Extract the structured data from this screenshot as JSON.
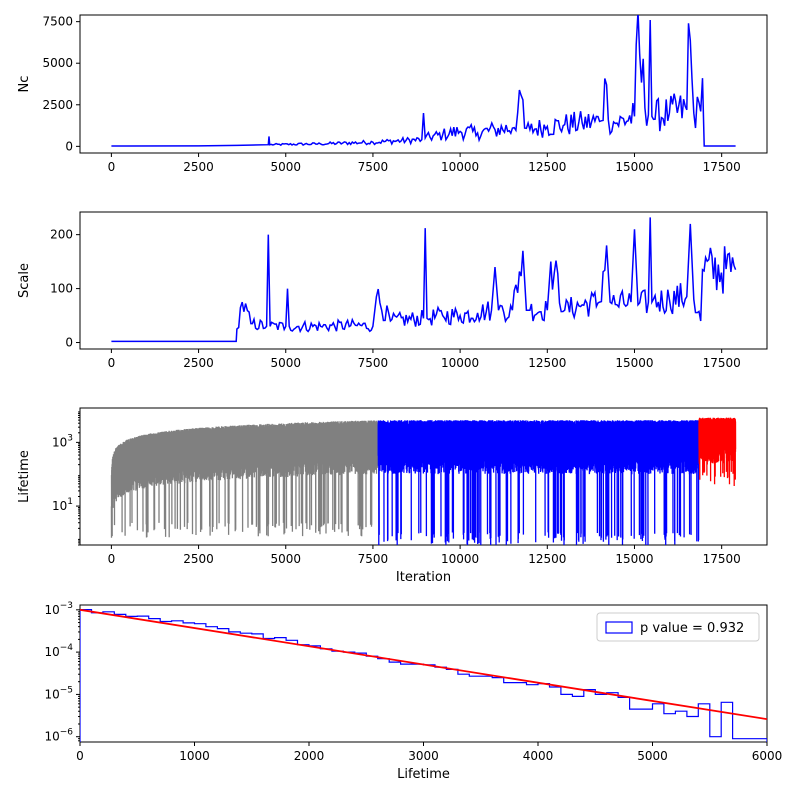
{
  "chart_data": [
    {
      "type": "line",
      "ylabel": "Nc",
      "xlabel": "",
      "xlim": [
        -900,
        18800
      ],
      "ylim": [
        -400,
        7900
      ],
      "xticks": [
        "0",
        "2500",
        "5000",
        "7500",
        "10000",
        "12500",
        "15000",
        "17500"
      ],
      "xtick_values": [
        0,
        2500,
        5000,
        7500,
        10000,
        12500,
        15000,
        17500
      ],
      "yticks": [
        "0",
        "2500",
        "5000",
        "7500"
      ],
      "ytick_values": [
        0,
        2500,
        5000,
        7500
      ],
      "series": [
        {
          "color": "#0000ff",
          "x": [
            0,
            2500,
            3600,
            4500,
            4520,
            4540,
            6000,
            7500,
            8900,
            8950,
            9000,
            9500,
            10000,
            10500,
            11000,
            11500,
            11800,
            11850,
            12000,
            12500,
            13000,
            13500,
            14000,
            14200,
            14250,
            14500,
            15000,
            15050,
            15400,
            15450,
            15500,
            16000,
            16500,
            16550,
            16700,
            16900,
            16950,
            17000,
            17900
          ],
          "y": [
            20,
            30,
            60,
            100,
            600,
            100,
            150,
            250,
            400,
            2000,
            500,
            700,
            900,
            800,
            1000,
            1100,
            2800,
            1100,
            1000,
            1200,
            1300,
            1400,
            1500,
            3700,
            1600,
            1400,
            1800,
            6100,
            1900,
            7600,
            1800,
            2000,
            2200,
            7400,
            2000,
            2100,
            4100,
            20,
            20
          ]
        }
      ]
    },
    {
      "type": "line",
      "ylabel": "Scale",
      "xlabel": "",
      "xlim": [
        -900,
        18800
      ],
      "ylim": [
        -12,
        242
      ],
      "xticks": [
        "0",
        "2500",
        "5000",
        "7500",
        "10000",
        "12500",
        "15000",
        "17500"
      ],
      "xtick_values": [
        0,
        2500,
        5000,
        7500,
        10000,
        12500,
        15000,
        17500
      ],
      "yticks": [
        "0",
        "100",
        "200"
      ],
      "ytick_values": [
        0,
        100,
        200
      ],
      "series": [
        {
          "color": "#0000ff",
          "x": [
            0,
            3580,
            3600,
            3750,
            4000,
            4450,
            4500,
            4550,
            5000,
            5050,
            5100,
            6000,
            7000,
            7500,
            7600,
            8000,
            8950,
            9000,
            9050,
            9500,
            10000,
            10500,
            10900,
            11000,
            11100,
            11500,
            11800,
            11900,
            12000,
            12500,
            12600,
            13000,
            13500,
            14000,
            14200,
            14300,
            14500,
            14900,
            15000,
            15100,
            15400,
            15450,
            15500,
            16000,
            16500,
            16600,
            16700,
            16900,
            16950,
            17900
          ],
          "y": [
            2,
            2,
            25,
            75,
            35,
            30,
            200,
            30,
            30,
            100,
            30,
            30,
            32,
            30,
            85,
            40,
            45,
            212,
            45,
            50,
            50,
            55,
            60,
            140,
            60,
            60,
            170,
            60,
            60,
            60,
            150,
            60,
            70,
            75,
            180,
            75,
            70,
            75,
            210,
            70,
            75,
            232,
            75,
            80,
            85,
            220,
            80,
            40,
            135,
            135
          ]
        }
      ]
    },
    {
      "type": "line",
      "ylabel": "Lifetime",
      "xlabel": "Iteration",
      "xlim": [
        -900,
        18800
      ],
      "yscale": "log",
      "ylim": [
        0.6,
        12000
      ],
      "xticks": [
        "0",
        "2500",
        "5000",
        "7500",
        "10000",
        "12500",
        "15000",
        "17500"
      ],
      "xtick_values": [
        0,
        2500,
        5000,
        7500,
        10000,
        12500,
        15000,
        17500
      ],
      "yticks": [
        "10^1",
        "10^3"
      ],
      "ytick_values": [
        10,
        1000
      ],
      "series": [
        {
          "color": "#808080",
          "x_range": [
            0,
            7650
          ],
          "envelope_top": "grows from 10 to 5000",
          "envelope_bottom": 2
        },
        {
          "color": "#0000ff",
          "x_range": [
            7650,
            16850
          ],
          "envelope_top": 5000,
          "envelope_bottom": 1
        },
        {
          "color": "#ff0000",
          "x_range": [
            16850,
            17900
          ],
          "envelope_top": 6000,
          "envelope_bottom": 80
        }
      ]
    },
    {
      "type": "step-histogram",
      "ylabel": "",
      "xlabel": "Lifetime",
      "xlim": [
        0,
        6000
      ],
      "yscale": "log",
      "ylim": [
        7.5e-07,
        0.0013
      ],
      "xticks": [
        "0",
        "1000",
        "2000",
        "3000",
        "4000",
        "5000",
        "6000"
      ],
      "xtick_values": [
        0,
        1000,
        2000,
        3000,
        4000,
        5000,
        6000
      ],
      "yticks": [
        "10^-6",
        "10^-5",
        "10^-4",
        "10^-3"
      ],
      "ytick_values": [
        1e-06,
        1e-05,
        0.0001,
        0.001
      ],
      "legend": {
        "label": "p value = 0.932",
        "placement": "upper right"
      },
      "fit_line": {
        "color": "#ff0000",
        "x": [
          0,
          6000
        ],
        "y": [
          0.001,
          2.6e-06
        ]
      },
      "histogram": {
        "color": "#0000ff",
        "bin_width": 100,
        "bin_start": 0,
        "values": [
          0.00101,
          0.00085,
          0.0009,
          0.00078,
          0.0007,
          0.00071,
          0.00062,
          0.00053,
          0.00055,
          0.00049,
          0.00047,
          0.0004,
          0.00036,
          0.0003,
          0.00028,
          0.00027,
          0.00021,
          0.00022,
          0.00019,
          0.00015,
          0.00014,
          0.00012,
          0.000105,
          0.0001,
          9.5e-05,
          8e-05,
          7e-05,
          5.8e-05,
          5.2e-05,
          5.2e-05,
          5e-05,
          4.4e-05,
          3.9e-05,
          3e-05,
          2.7e-05,
          2.7e-05,
          2.5e-05,
          1.9e-05,
          1.9e-05,
          1.7e-05,
          1.8e-05,
          1.5e-05,
          1e-05,
          9e-06,
          1.3e-05,
          1e-05,
          1.1e-05,
          8.5e-06,
          4.5e-06,
          4.5e-06,
          6e-06,
          3.5e-06,
          4e-06,
          3e-06,
          6e-06,
          1e-06,
          6.5e-06,
          9e-07,
          9e-07,
          9e-07
        ]
      }
    }
  ]
}
